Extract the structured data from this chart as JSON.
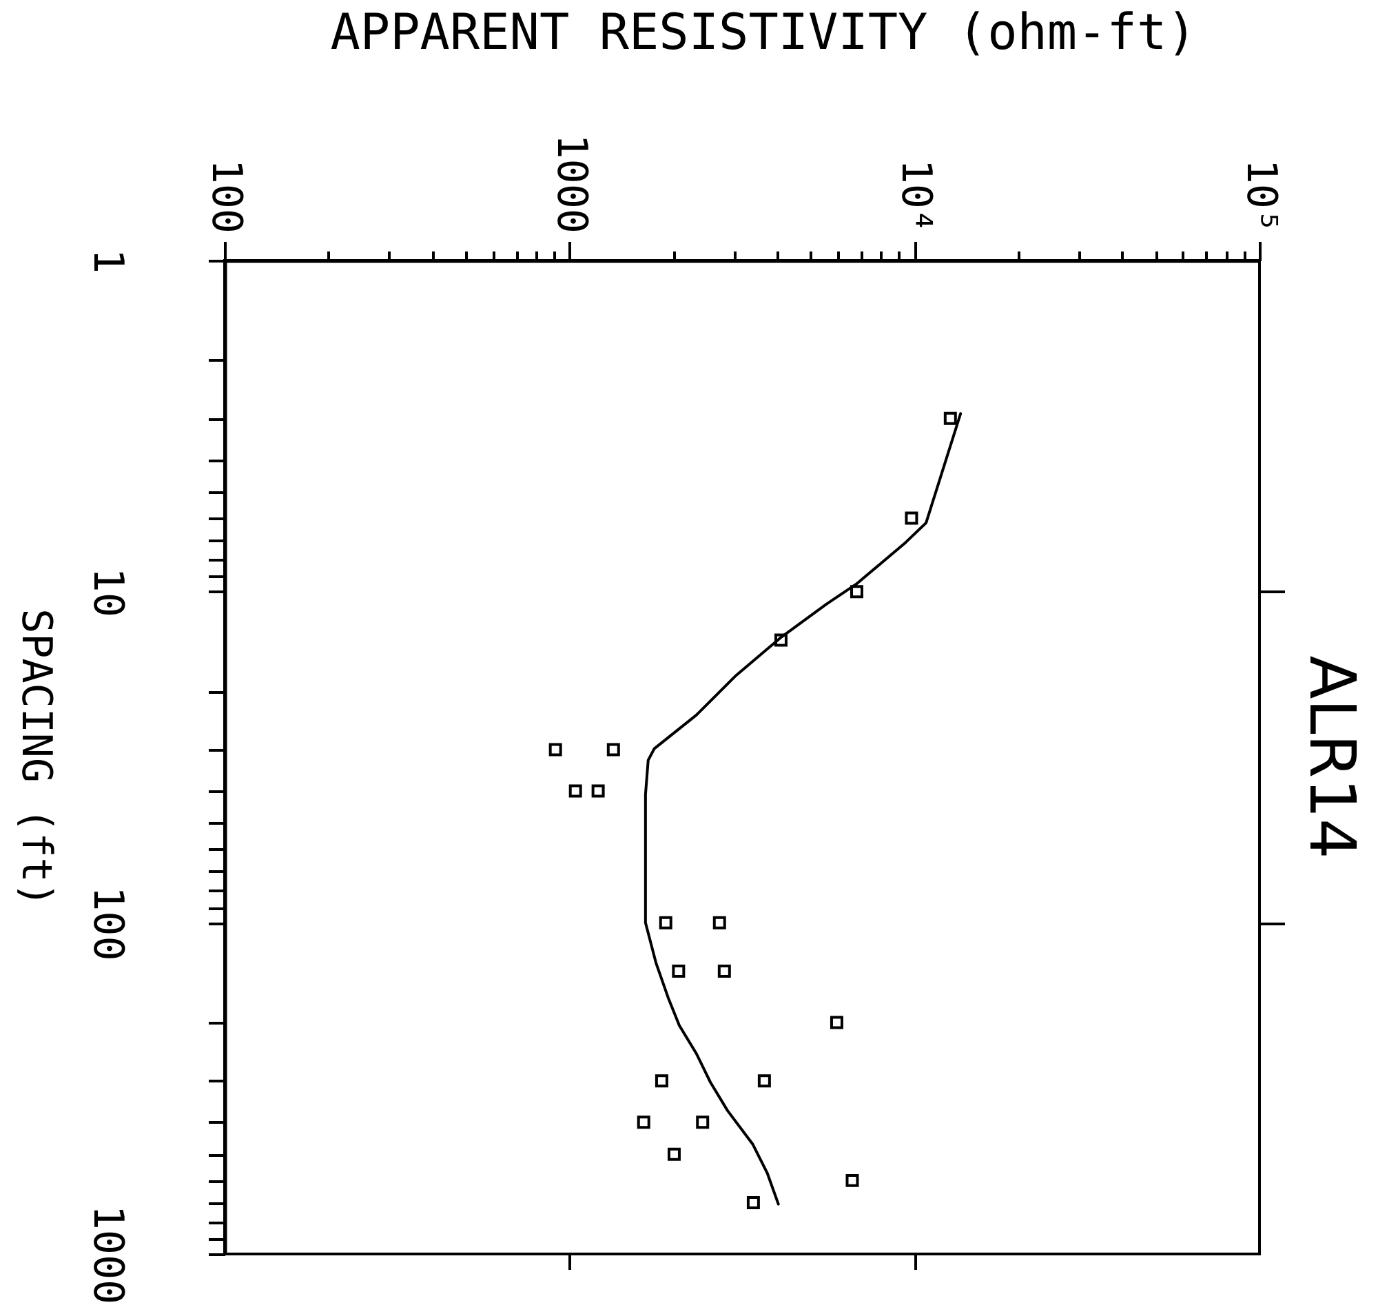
{
  "chart_data": {
    "type": "scatter",
    "title": "ALR14",
    "xlabel": "APPARENT RESISTIVITY (ohm-ft)",
    "ylabel": "SPACING (ft)",
    "log": "xy",
    "xlim": [
      100,
      100000
    ],
    "ylim": [
      1000,
      1
    ],
    "xticks": [
      100,
      {
        "value": 200,
        "label": null
      },
      {
        "value": 300,
        "label": null
      },
      {
        "value": 400,
        "label": null
      },
      {
        "value": 500,
        "label": null
      },
      {
        "value": 600,
        "label": null
      },
      {
        "value": 700,
        "label": null
      },
      {
        "value": 800,
        "label": null
      },
      {
        "value": 900,
        "label": null
      },
      1000,
      {
        "value": 2000,
        "label": null
      },
      {
        "value": 3000,
        "label": null
      },
      {
        "value": 4000,
        "label": null
      },
      {
        "value": 5000,
        "label": null
      },
      {
        "value": 6000,
        "label": null
      },
      {
        "value": 7000,
        "label": null
      },
      {
        "value": 8000,
        "label": null
      },
      {
        "value": 9000,
        "label": null
      },
      {
        "value": 10000,
        "label": "10⁴"
      },
      {
        "value": 20000,
        "label": null
      },
      {
        "value": 30000,
        "label": null
      },
      {
        "value": 40000,
        "label": null
      },
      {
        "value": 50000,
        "label": null
      },
      {
        "value": 60000,
        "label": null
      },
      {
        "value": 70000,
        "label": null
      },
      {
        "value": 80000,
        "label": null
      },
      {
        "value": 90000,
        "label": null
      },
      {
        "value": 100000,
        "label": "10⁵"
      }
    ],
    "yticks": [
      1,
      {
        "value": 2,
        "label": null
      },
      {
        "value": 3,
        "label": null
      },
      {
        "value": 4,
        "label": null
      },
      {
        "value": 5,
        "label": null
      },
      {
        "value": 6,
        "label": null
      },
      {
        "value": 7,
        "label": null
      },
      {
        "value": 8,
        "label": null
      },
      {
        "value": 9,
        "label": null
      },
      10,
      {
        "value": 20,
        "label": null
      },
      {
        "value": 30,
        "label": null
      },
      {
        "value": 40,
        "label": null
      },
      {
        "value": 50,
        "label": null
      },
      {
        "value": 60,
        "label": null
      },
      {
        "value": 70,
        "label": null
      },
      {
        "value": 80,
        "label": null
      },
      {
        "value": 90,
        "label": null
      },
      100,
      {
        "value": 200,
        "label": null
      },
      {
        "value": 300,
        "label": null
      },
      {
        "value": 400,
        "label": null
      },
      {
        "value": 500,
        "label": null
      },
      {
        "value": 600,
        "label": null
      },
      {
        "value": 700,
        "label": null
      },
      {
        "value": 800,
        "label": null
      },
      {
        "value": 900,
        "label": null
      },
      1000
    ],
    "series": [
      {
        "color": "#000000",
        "marker": "square",
        "x": [
          12700,
          9800,
          6800,
          4100,
          910,
          1340,
          1040,
          1210,
          1900,
          2720,
          2070,
          2810,
          5950,
          1850,
          3670,
          1640,
          2430,
          2010,
          6600,
          3410
        ],
        "values": [
          3,
          6,
          10,
          14,
          30,
          30,
          40,
          40,
          100,
          100,
          140,
          140,
          200,
          300,
          300,
          400,
          400,
          500,
          600,
          700
        ]
      },
      {
        "type": "line",
        "color": "#000000",
        "marker": "none",
        "line_style": "solid",
        "x": [
          13600,
          10800,
          9430,
          6770,
          5560,
          4080,
          3040,
          2330,
          1760,
          1690,
          1660,
          1660,
          1780,
          1930,
          2080,
          2330,
          2560,
          2870,
          3400,
          3740,
          4030
        ],
        "values": [
          2.9,
          6.2,
          7.1,
          9.5,
          10.9,
          13.8,
          17.9,
          23.6,
          29.8,
          32.3,
          41,
          100,
          132,
          168,
          204,
          248,
          303,
          369,
          467,
          569,
          707
        ]
      }
    ]
  }
}
